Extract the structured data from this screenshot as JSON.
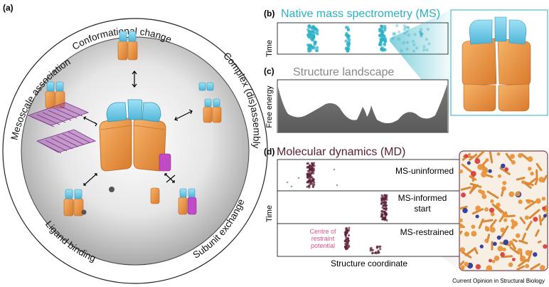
{
  "panel_a": {
    "label": "(a)",
    "ring_labels": {
      "top": "Conformational change",
      "right": "Complex (dis)assembly",
      "bottom_right": "Subunit exchange",
      "bottom_left": "Ligand binding",
      "left": "Mesoscale association"
    }
  },
  "panel_b": {
    "label": "(b)",
    "title": "Native mass spectrometry (MS)",
    "ylabel": "Time"
  },
  "panel_c": {
    "label": "(c)",
    "title": "Structure landscape",
    "ylabel": "Free energy"
  },
  "panel_d": {
    "label": "(d)",
    "title": "Molecular dynamics (MD)",
    "ylabel": "Time",
    "xlabel": "Structure coordinate",
    "rows": [
      "MS-uninformed",
      "MS-informed start",
      "MS-restrained"
    ],
    "restraint_label": "Centre of restraint potential"
  },
  "credit": "Current Opinion in Structural Biology",
  "colors": {
    "orange": "#e8923a",
    "cyan": "#6cc8e6",
    "purple": "#7a2f8a",
    "magenta": "#c14bc7",
    "maroon": "#5a2036",
    "teal": "#2bb0c4",
    "gray_fill": "#6e6e6e"
  }
}
